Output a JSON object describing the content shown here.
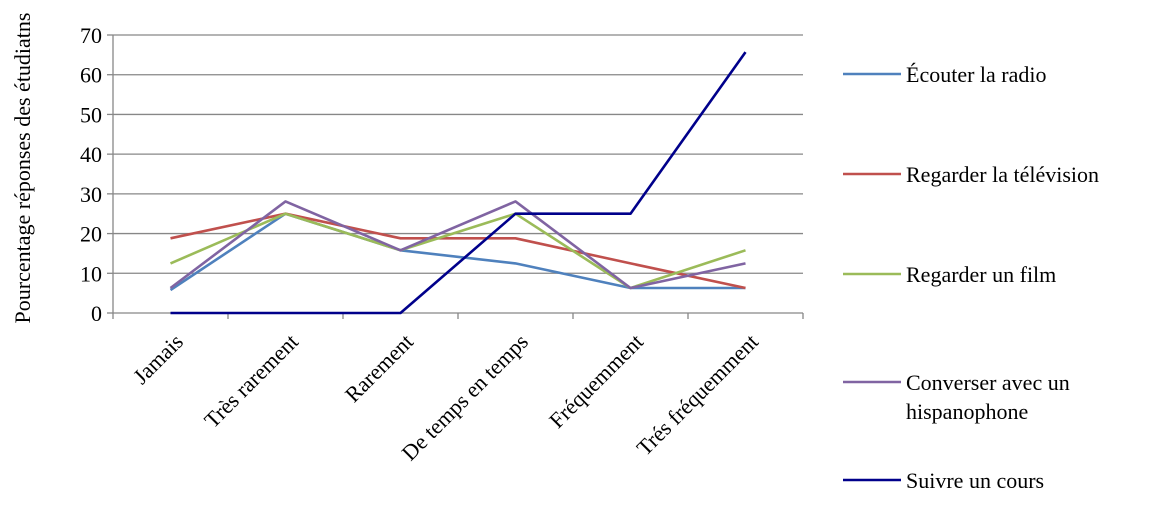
{
  "chart_data": {
    "type": "line",
    "title": "",
    "xlabel": "",
    "ylabel": "Pourcentage réponses des étudiatns",
    "ylim": [
      0,
      70
    ],
    "yticks": [
      0,
      10,
      20,
      30,
      40,
      50,
      60,
      70
    ],
    "grid": "horizontal",
    "legend_position": "right",
    "categories": [
      "Jamais",
      "Très rarement",
      "Rarement",
      "De temps en temps",
      "Fréquemment",
      "Trés fréquemment"
    ],
    "series": [
      {
        "name": "Écouter la radio",
        "color": "#4f81bd",
        "values": [
          5.8,
          25,
          15.8,
          12.5,
          6.3,
          6.3
        ]
      },
      {
        "name": "Regarder la télévision",
        "color": "#c0504d",
        "values": [
          18.8,
          25,
          18.8,
          18.8,
          12.5,
          6.3
        ]
      },
      {
        "name": "Regarder un film",
        "color": "#9bbb59",
        "values": [
          12.5,
          25,
          15.8,
          25,
          6.3,
          15.8
        ]
      },
      {
        "name": "Converser avec un hispanophone",
        "legend_lines": [
          "Converser avec un",
          "hispanophone"
        ],
        "color": "#8064a2",
        "values": [
          6.3,
          28.1,
          15.8,
          28.1,
          6.3,
          12.5
        ]
      },
      {
        "name": "Suivre un cours",
        "color": "#00008b",
        "values": [
          0,
          0,
          0,
          25,
          25,
          65.7
        ]
      }
    ]
  }
}
